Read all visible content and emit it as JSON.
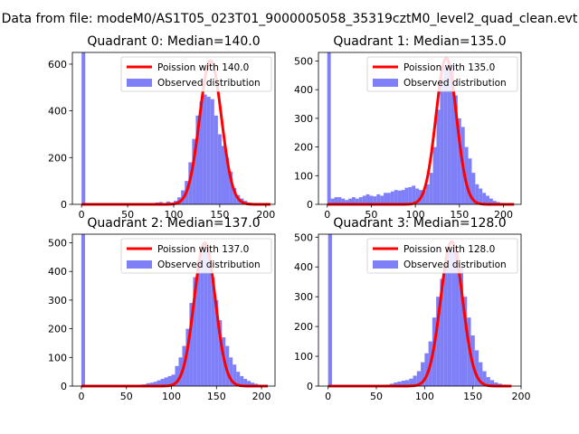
{
  "figure": {
    "title": "Data from file: modeM0/AS1T05_023T01_9000005058_35319cztM0_level2_quad_clean.evt"
  },
  "chart_data": [
    {
      "type": "bar",
      "title": "Quadrant 0: Median=140.0",
      "xlim": [
        -10,
        210
      ],
      "ylim": [
        0,
        650
      ],
      "xticks": [
        0,
        50,
        100,
        150,
        200
      ],
      "yticks": [
        0,
        200,
        400,
        600
      ],
      "xtick_labels": [
        "0",
        "50",
        "100",
        "150",
        "200"
      ],
      "ytick_labels": [
        "0",
        "200",
        "400",
        "600"
      ],
      "legend": [
        "Poission with 140.0",
        "Observed distribution"
      ],
      "legend_position": "top-right",
      "bin_width": 4,
      "bins": [
        [
          0,
          650
        ],
        [
          40,
          2
        ],
        [
          80,
          8
        ],
        [
          84,
          10
        ],
        [
          88,
          5
        ],
        [
          92,
          12
        ],
        [
          96,
          8
        ],
        [
          100,
          15
        ],
        [
          104,
          30
        ],
        [
          108,
          60
        ],
        [
          112,
          100
        ],
        [
          116,
          180
        ],
        [
          120,
          280
        ],
        [
          124,
          380
        ],
        [
          128,
          440
        ],
        [
          132,
          470
        ],
        [
          136,
          460
        ],
        [
          140,
          450
        ],
        [
          144,
          380
        ],
        [
          148,
          300
        ],
        [
          152,
          250
        ],
        [
          156,
          200
        ],
        [
          160,
          140
        ],
        [
          164,
          70
        ],
        [
          168,
          40
        ],
        [
          172,
          25
        ],
        [
          176,
          15
        ],
        [
          180,
          8
        ],
        [
          184,
          5
        ],
        [
          188,
          3
        ],
        [
          196,
          2
        ]
      ],
      "poisson_mean": 140.0,
      "poisson_peak": 615,
      "fit_range": [
        0,
        205
      ]
    },
    {
      "type": "bar",
      "title": "Quadrant 1: Median=135.0",
      "xlim": [
        -10,
        220
      ],
      "ylim": [
        0,
        530
      ],
      "xticks": [
        0,
        50,
        100,
        150,
        200
      ],
      "yticks": [
        0,
        100,
        200,
        300,
        400,
        500
      ],
      "xtick_labels": [
        "0",
        "50",
        "100",
        "150",
        "200"
      ],
      "ytick_labels": [
        "0",
        "100",
        "200",
        "300",
        "400",
        "500"
      ],
      "legend": [
        "Poission with 135.0",
        "Observed distribution"
      ],
      "legend_position": "top-right",
      "bin_width": 4,
      "bins": [
        [
          0,
          530
        ],
        [
          4,
          20
        ],
        [
          8,
          25
        ],
        [
          12,
          25
        ],
        [
          16,
          20
        ],
        [
          20,
          15
        ],
        [
          24,
          20
        ],
        [
          28,
          25
        ],
        [
          32,
          20
        ],
        [
          36,
          25
        ],
        [
          40,
          30
        ],
        [
          44,
          35
        ],
        [
          48,
          30
        ],
        [
          52,
          28
        ],
        [
          56,
          35
        ],
        [
          60,
          30
        ],
        [
          64,
          40
        ],
        [
          68,
          40
        ],
        [
          72,
          45
        ],
        [
          76,
          50
        ],
        [
          80,
          48
        ],
        [
          84,
          50
        ],
        [
          88,
          58
        ],
        [
          92,
          60
        ],
        [
          96,
          65
        ],
        [
          100,
          55
        ],
        [
          104,
          50
        ],
        [
          108,
          48
        ],
        [
          112,
          70
        ],
        [
          116,
          110
        ],
        [
          120,
          200
        ],
        [
          124,
          330
        ],
        [
          128,
          440
        ],
        [
          132,
          480
        ],
        [
          136,
          500
        ],
        [
          140,
          490
        ],
        [
          144,
          380
        ],
        [
          148,
          300
        ],
        [
          152,
          270
        ],
        [
          156,
          200
        ],
        [
          160,
          160
        ],
        [
          164,
          110
        ],
        [
          168,
          70
        ],
        [
          172,
          55
        ],
        [
          176,
          40
        ],
        [
          180,
          30
        ],
        [
          184,
          20
        ],
        [
          188,
          12
        ],
        [
          192,
          8
        ],
        [
          196,
          5
        ]
      ],
      "poisson_mean": 135.0,
      "poisson_peak": 510,
      "fit_range": [
        0,
        212
      ]
    },
    {
      "type": "bar",
      "title": "Quadrant 2: Median=137.0",
      "xlim": [
        -10,
        215
      ],
      "ylim": [
        0,
        530
      ],
      "xticks": [
        0,
        50,
        100,
        150,
        200
      ],
      "yticks": [
        0,
        100,
        200,
        300,
        400,
        500
      ],
      "xtick_labels": [
        "0",
        "50",
        "100",
        "150",
        "200"
      ],
      "ytick_labels": [
        "0",
        "100",
        "200",
        "300",
        "400",
        "500"
      ],
      "legend": [
        "Poission with 137.0",
        "Observed distribution"
      ],
      "legend_position": "top-right",
      "bin_width": 4,
      "bins": [
        [
          0,
          530
        ],
        [
          56,
          3
        ],
        [
          60,
          4
        ],
        [
          64,
          5
        ],
        [
          68,
          6
        ],
        [
          72,
          10
        ],
        [
          76,
          12
        ],
        [
          80,
          15
        ],
        [
          84,
          20
        ],
        [
          88,
          25
        ],
        [
          92,
          30
        ],
        [
          96,
          35
        ],
        [
          100,
          40
        ],
        [
          104,
          70
        ],
        [
          108,
          100
        ],
        [
          112,
          140
        ],
        [
          116,
          200
        ],
        [
          120,
          290
        ],
        [
          124,
          380
        ],
        [
          128,
          440
        ],
        [
          132,
          470
        ],
        [
          136,
          500
        ],
        [
          140,
          470
        ],
        [
          144,
          380
        ],
        [
          148,
          300
        ],
        [
          152,
          230
        ],
        [
          156,
          170
        ],
        [
          160,
          140
        ],
        [
          164,
          100
        ],
        [
          168,
          75
        ],
        [
          172,
          50
        ],
        [
          176,
          35
        ],
        [
          180,
          25
        ],
        [
          184,
          18
        ],
        [
          188,
          12
        ],
        [
          192,
          8
        ],
        [
          196,
          5
        ],
        [
          200,
          3
        ]
      ],
      "poisson_mean": 137.0,
      "poisson_peak": 500,
      "fit_range": [
        0,
        207
      ]
    },
    {
      "type": "bar",
      "title": "Quadrant 3: Median=128.0",
      "xlim": [
        -10,
        200
      ],
      "ylim": [
        0,
        510
      ],
      "xticks": [
        0,
        50,
        100,
        150,
        200
      ],
      "yticks": [
        0,
        100,
        200,
        300,
        400,
        500
      ],
      "xtick_labels": [
        "0",
        "50",
        "100",
        "150",
        "200"
      ],
      "ytick_labels": [
        "0",
        "100",
        "200",
        "300",
        "400",
        "500"
      ],
      "legend": [
        "Poission with 128.0",
        "Observed distribution"
      ],
      "legend_position": "top-right",
      "bin_width": 4,
      "bins": [
        [
          0,
          510
        ],
        [
          52,
          2
        ],
        [
          56,
          3
        ],
        [
          60,
          5
        ],
        [
          64,
          8
        ],
        [
          68,
          12
        ],
        [
          72,
          15
        ],
        [
          76,
          18
        ],
        [
          80,
          20
        ],
        [
          84,
          25
        ],
        [
          88,
          35
        ],
        [
          92,
          50
        ],
        [
          96,
          80
        ],
        [
          100,
          110
        ],
        [
          104,
          150
        ],
        [
          108,
          230
        ],
        [
          112,
          300
        ],
        [
          116,
          360
        ],
        [
          120,
          410
        ],
        [
          124,
          450
        ],
        [
          128,
          470
        ],
        [
          132,
          450
        ],
        [
          136,
          400
        ],
        [
          140,
          300
        ],
        [
          144,
          230
        ],
        [
          148,
          170
        ],
        [
          152,
          120
        ],
        [
          156,
          80
        ],
        [
          160,
          50
        ],
        [
          164,
          30
        ],
        [
          168,
          20
        ],
        [
          172,
          12
        ],
        [
          176,
          8
        ],
        [
          180,
          5
        ],
        [
          184,
          3
        ]
      ],
      "poisson_mean": 128.0,
      "poisson_peak": 485,
      "fit_range": [
        0,
        190
      ]
    }
  ]
}
